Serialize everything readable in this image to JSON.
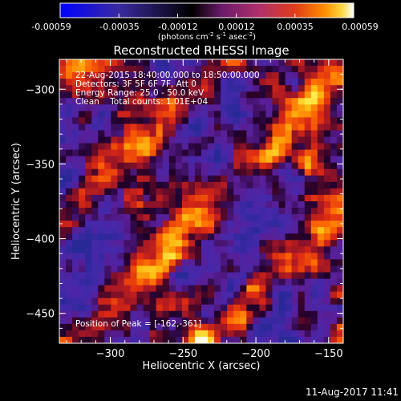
{
  "colorbar": {
    "tick_labels": [
      "-0.00059",
      "-0.00035",
      "-0.00012",
      "0.00012",
      "0.00035",
      "0.00059"
    ],
    "range": [
      -0.00059,
      0.00059
    ],
    "colormap": [
      "#0000ff",
      "#3a2aa0",
      "#000000",
      "#6a1a6a",
      "#b0306a",
      "#e03c1a",
      "#ff8c00",
      "#ffd840",
      "#ffffff"
    ],
    "unit_label_lines": [
      "(photons cm",
      "-2",
      " s",
      "-1",
      " asec",
      "-2",
      ")"
    ]
  },
  "chart_data": {
    "type": "heatmap",
    "title": "Reconstructed RHESSI Image",
    "xlabel": "Heliocentric X (arcsec)",
    "ylabel": "Heliocentric Y (arcsec)",
    "xlim": [
      -335,
      -140
    ],
    "ylim": [
      -470,
      -280
    ],
    "xticks": [
      -300,
      -250,
      -200,
      -150
    ],
    "yticks": [
      -300,
      -350,
      -400,
      -450
    ],
    "colorbar_range": [
      -0.00059,
      0.00059
    ],
    "colorbar_ticks": [
      -0.00059,
      -0.00035,
      -0.00012,
      0.00012,
      0.00035,
      0.00059
    ],
    "peak_position": [
      -162,
      -361
    ],
    "annotations": [
      "22-Aug-2015 18:40:00.000 to 18:50:00.000",
      "Detectors: 3F 5F 6F 7F, Att 0",
      "Energy Range: 25.0 - 50.0 keV",
      "Clean    Total counts: 1.01E+04"
    ],
    "peak_label": "Position of Peak = [-162,-361]"
  },
  "footer": {
    "timestamp": "11-Aug-2017 11:41"
  }
}
